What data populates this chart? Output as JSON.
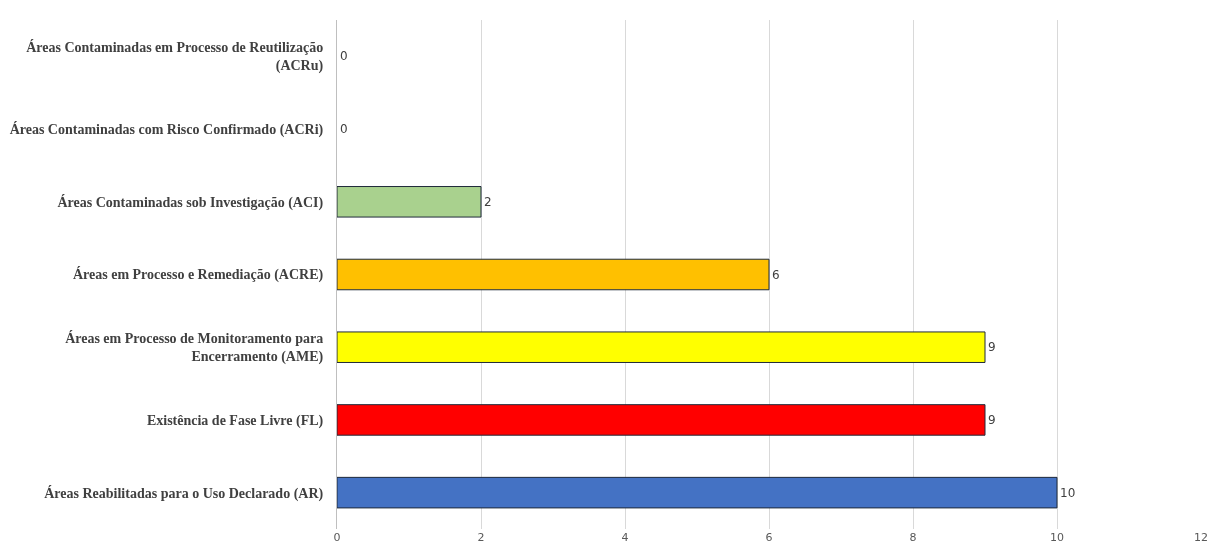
{
  "chart_data": {
    "type": "bar",
    "orientation": "horizontal",
    "categories": [
      "Áreas Contaminadas em Processo de Reutilização (ACRu)",
      "Áreas Contaminadas com Risco Confirmado (ACRi)",
      "Áreas Contaminadas sob Investigação (ACI)",
      "Áreas em Processo e Remediação (ACRE)",
      "Áreas em Processo de Monitoramento para Encerramento (AME)",
      "Existência de Fase Livre (FL)",
      "Áreas Reabilitadas para o Uso Declarado (AR)"
    ],
    "values": [
      0,
      0,
      2,
      6,
      9,
      9,
      10
    ],
    "colors": [
      "#4472c4",
      "#4472c4",
      "#a9d18e",
      "#ffc000",
      "#ffff00",
      "#ff0000",
      "#4472c4"
    ],
    "xlim": [
      0,
      12
    ],
    "xticks": [
      0,
      2,
      4,
      6,
      8,
      10,
      12
    ],
    "grid": "x",
    "data_labels": true,
    "legend": false
  }
}
